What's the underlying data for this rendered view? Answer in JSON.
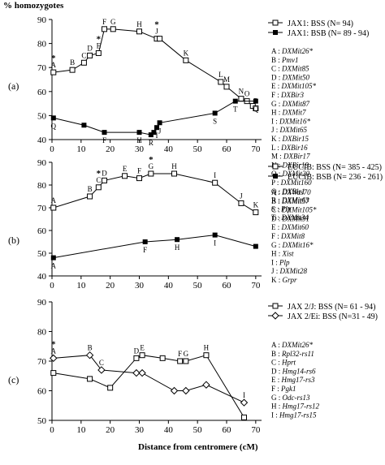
{
  "figure": {
    "ylabel": "% homozygotes",
    "xlabel": "Distance from centromere (cM)"
  },
  "chart_data": [
    {
      "type": "line",
      "panel_label": "(a)",
      "xlim": [
        0,
        72
      ],
      "ylim": [
        40,
        90
      ],
      "xticks": [
        0,
        10,
        20,
        30,
        40,
        50,
        60,
        70
      ],
      "yticks": [
        40,
        50,
        60,
        70,
        80,
        90
      ],
      "series": [
        {
          "name": "JAX1: BSS (N= 94)",
          "marker": "open-square",
          "points": [
            {
              "x": 0.5,
              "y": 68,
              "label": "A",
              "star": true
            },
            {
              "x": 7,
              "y": 69,
              "label": "B"
            },
            {
              "x": 11,
              "y": 72,
              "label": "C"
            },
            {
              "x": 13,
              "y": 75,
              "label": "D"
            },
            {
              "x": 16,
              "y": 76,
              "label": "E",
              "star": true
            },
            {
              "x": 18,
              "y": 86,
              "label": "F"
            },
            {
              "x": 21,
              "y": 86,
              "label": "G"
            },
            {
              "x": 30,
              "y": 85,
              "label": "H"
            },
            {
              "x": 36,
              "y": 82,
              "label": "J",
              "star": true
            },
            {
              "x": 37,
              "y": 82,
              "label": ""
            },
            {
              "x": 46,
              "y": 73,
              "label": "K"
            },
            {
              "x": 58,
              "y": 64,
              "label": "L"
            },
            {
              "x": 60,
              "y": 62,
              "label": "M"
            },
            {
              "x": 65,
              "y": 57,
              "label": "N"
            },
            {
              "x": 67,
              "y": 56,
              "label": "O"
            },
            {
              "x": 69,
              "y": 54,
              "label": ""
            },
            {
              "x": 70,
              "y": 53,
              "label": "P"
            }
          ]
        },
        {
          "name": "JAX1: BSB (N= 89 - 94)",
          "marker": "filled-square",
          "points": [
            {
              "x": 0.5,
              "y": 49,
              "label": "Q"
            },
            {
              "x": 11,
              "y": 46,
              "label": ""
            },
            {
              "x": 18,
              "y": 43,
              "label": "F"
            },
            {
              "x": 30,
              "y": 43,
              "label": "H"
            },
            {
              "x": 34,
              "y": 42,
              "label": "R"
            },
            {
              "x": 35,
              "y": 43,
              "label": ""
            },
            {
              "x": 36,
              "y": 45,
              "label": "I"
            },
            {
              "x": 37,
              "y": 47,
              "label": "J"
            },
            {
              "x": 56,
              "y": 51,
              "label": "S"
            },
            {
              "x": 63,
              "y": 56,
              "label": "T"
            },
            {
              "x": 70,
              "y": 56,
              "label": "Q"
            }
          ]
        }
      ],
      "legend_entries": [
        {
          "id": "A",
          "marker": "DXMit26*"
        },
        {
          "id": "B",
          "marker": "Pmv1"
        },
        {
          "id": "C",
          "marker": "DXMit85"
        },
        {
          "id": "D",
          "marker": "DXMit50"
        },
        {
          "id": "E",
          "marker": "DXMit105*"
        },
        {
          "id": "F",
          "marker": "DXBir3"
        },
        {
          "id": "G",
          "marker": "DXMit87"
        },
        {
          "id": "H",
          "marker": "DXMit7"
        },
        {
          "id": "I",
          "marker": "DXMit16*"
        },
        {
          "id": "J",
          "marker": "DXMit65"
        },
        {
          "id": "K",
          "marker": "DXBir15"
        },
        {
          "id": "L",
          "marker": "DXBir16"
        },
        {
          "id": "M",
          "marker": "DXBir17"
        },
        {
          "id": "N",
          "marker": "DXBir19"
        },
        {
          "id": "O",
          "marker": "DXMit20"
        },
        {
          "id": "P",
          "marker": "DXMit160"
        },
        {
          "id": "Q",
          "marker": "DXBir1"
        },
        {
          "id": "R",
          "marker": "DXMit63"
        },
        {
          "id": "S",
          "marker": "Plp"
        },
        {
          "id": "T",
          "marker": "DXMit34"
        }
      ]
    },
    {
      "type": "line",
      "panel_label": "(b)",
      "xlim": [
        0,
        72
      ],
      "ylim": [
        40,
        90
      ],
      "xticks": [
        0,
        10,
        20,
        30,
        40,
        50,
        60,
        70
      ],
      "yticks": [
        40,
        50,
        60,
        70,
        80,
        90
      ],
      "series": [
        {
          "name": "EUCIB: BSS (N= 385 - 425)",
          "marker": "open-square",
          "points": [
            {
              "x": 0.5,
              "y": 70,
              "label": "A"
            },
            {
              "x": 13,
              "y": 75,
              "label": "B"
            },
            {
              "x": 16,
              "y": 79,
              "label": "C",
              "star": true
            },
            {
              "x": 18,
              "y": 82,
              "label": "D"
            },
            {
              "x": 25,
              "y": 84,
              "label": "E"
            },
            {
              "x": 30,
              "y": 83,
              "label": "F"
            },
            {
              "x": 34,
              "y": 85,
              "label": "G",
              "star": true
            },
            {
              "x": 42,
              "y": 85,
              "label": "H"
            },
            {
              "x": 56,
              "y": 81,
              "label": "I"
            },
            {
              "x": 65,
              "y": 72,
              "label": "J"
            },
            {
              "x": 70,
              "y": 68,
              "label": "K"
            }
          ]
        },
        {
          "name": "EUCIB: BSB (N= 236 - 261)",
          "marker": "filled-square",
          "points": [
            {
              "x": 0.5,
              "y": 48,
              "label": "A"
            },
            {
              "x": 32,
              "y": 55,
              "label": "F"
            },
            {
              "x": 43,
              "y": 56,
              "label": "H"
            },
            {
              "x": 56,
              "y": 58,
              "label": "I"
            },
            {
              "x": 70,
              "y": 53,
              "label": ""
            }
          ]
        }
      ],
      "legend_entries": [
        {
          "id": "A",
          "marker": "DXWas70"
        },
        {
          "id": "B",
          "marker": "DXMit57"
        },
        {
          "id": "C",
          "marker": "DXMit105*"
        },
        {
          "id": "D",
          "marker": "DXMit91"
        },
        {
          "id": "E",
          "marker": "DXMit60"
        },
        {
          "id": "F",
          "marker": "DXMit8"
        },
        {
          "id": "G",
          "marker": "DXMit16*"
        },
        {
          "id": "H",
          "marker": "Xist"
        },
        {
          "id": "I",
          "marker": "Plp"
        },
        {
          "id": "J",
          "marker": "DXMit28"
        },
        {
          "id": "K",
          "marker": "Grpr"
        }
      ]
    },
    {
      "type": "line",
      "panel_label": "(c)",
      "xlim": [
        0,
        72
      ],
      "ylim": [
        50,
        90
      ],
      "xticks": [
        0,
        10,
        20,
        30,
        40,
        50,
        60,
        70
      ],
      "yticks": [
        50,
        60,
        70,
        80,
        90
      ],
      "series": [
        {
          "name": "JAX 2/J: BSS (N= 61 - 94)",
          "marker": "open-square",
          "points": [
            {
              "x": 0.5,
              "y": 66,
              "label": ""
            },
            {
              "x": 13,
              "y": 64,
              "label": ""
            },
            {
              "x": 20,
              "y": 61,
              "label": ""
            },
            {
              "x": 29,
              "y": 71,
              "label": "D"
            },
            {
              "x": 31,
              "y": 72,
              "label": "E"
            },
            {
              "x": 38,
              "y": 71,
              "label": ""
            },
            {
              "x": 44,
              "y": 70,
              "label": "F"
            },
            {
              "x": 46,
              "y": 70,
              "label": "G"
            },
            {
              "x": 53,
              "y": 72,
              "label": "H"
            },
            {
              "x": 66,
              "y": 51,
              "label": ""
            }
          ]
        },
        {
          "name": "JAX 2/Ei: BSS (N=31 - 49)",
          "marker": "open-diamond",
          "points": [
            {
              "x": 0.5,
              "y": 71,
              "label": "A",
              "star": true
            },
            {
              "x": 13,
              "y": 72,
              "label": "B"
            },
            {
              "x": 17,
              "y": 67,
              "label": "C"
            },
            {
              "x": 29,
              "y": 66,
              "label": ""
            },
            {
              "x": 31,
              "y": 66,
              "label": ""
            },
            {
              "x": 42,
              "y": 60,
              "label": ""
            },
            {
              "x": 46,
              "y": 60,
              "label": ""
            },
            {
              "x": 53,
              "y": 62,
              "label": ""
            },
            {
              "x": 66,
              "y": 56,
              "label": "I"
            }
          ]
        }
      ],
      "legend_entries": [
        {
          "id": "A",
          "marker": "DXMit26*"
        },
        {
          "id": "B",
          "marker": "Rpl32-rs11"
        },
        {
          "id": "C",
          "marker": "Hprt"
        },
        {
          "id": "D",
          "marker": "Hmg14-rs6"
        },
        {
          "id": "E",
          "marker": "Hmg17-rs3"
        },
        {
          "id": "F",
          "marker": "Pgk1"
        },
        {
          "id": "G",
          "marker": "Odc-rs13"
        },
        {
          "id": "H",
          "marker": "Hmg17-rs12"
        },
        {
          "id": "I",
          "marker": "Hmg17-rs15"
        }
      ]
    }
  ]
}
